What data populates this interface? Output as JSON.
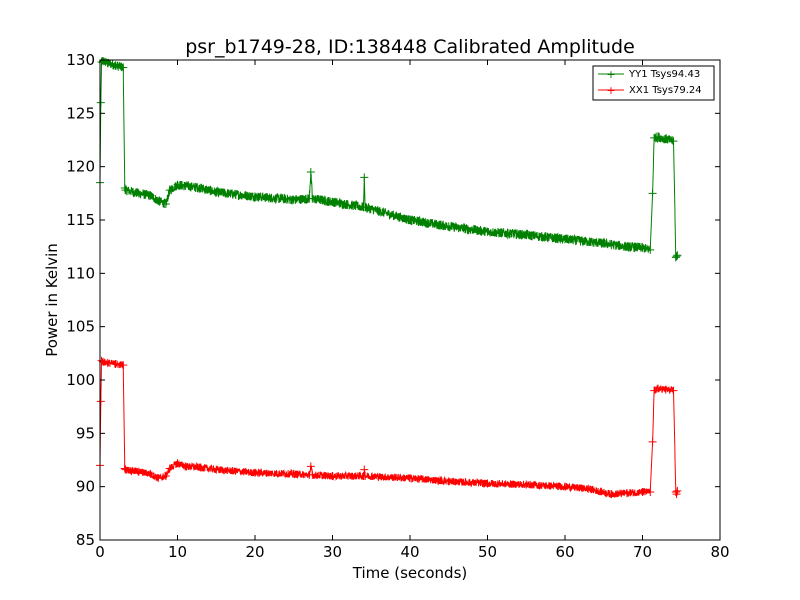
{
  "chart_data": {
    "type": "line",
    "title": "psr_b1749-28, ID:138448 Calibrated Amplitude",
    "xlabel": "Time (seconds)",
    "ylabel": "Power in Kelvin",
    "xlim": [
      0,
      80
    ],
    "ylim": [
      85,
      130
    ],
    "xticks": [
      "0",
      "10",
      "20",
      "30",
      "40",
      "50",
      "60",
      "70",
      "80"
    ],
    "yticks": [
      "85",
      "90",
      "95",
      "100",
      "105",
      "110",
      "115",
      "120",
      "125",
      "130"
    ],
    "grid": false,
    "legend_position": "top-right",
    "series": [
      {
        "name": "YY1 Tsys94.43",
        "color": "#008000",
        "marker": "+",
        "noise": 0.45,
        "x": [
          0.0,
          0.1,
          0.2,
          0.4,
          1.0,
          2.0,
          3.0,
          3.2,
          3.3,
          5.0,
          6.5,
          7.5,
          8.5,
          9.0,
          10.0,
          11.0,
          13.0,
          15.0,
          20.0,
          25.0,
          27.0,
          27.2,
          27.4,
          30.0,
          34.0,
          34.1,
          34.2,
          40.0,
          45.0,
          50.0,
          55.0,
          60.0,
          65.0,
          68.0,
          70.0,
          71.0,
          71.3,
          71.5,
          72.0,
          73.0,
          74.0,
          74.3,
          74.4,
          74.5
        ],
        "y": [
          118.5,
          126.0,
          129.8,
          129.9,
          129.7,
          129.5,
          129.3,
          118.0,
          117.8,
          117.5,
          117.3,
          116.8,
          116.5,
          117.8,
          118.3,
          118.2,
          118.0,
          117.6,
          117.2,
          116.9,
          117.0,
          119.5,
          117.0,
          116.7,
          116.2,
          119.0,
          116.2,
          115.0,
          114.4,
          113.9,
          113.6,
          113.2,
          112.8,
          112.5,
          112.4,
          112.2,
          117.5,
          122.7,
          122.8,
          122.6,
          122.4,
          111.5,
          111.6,
          111.7
        ]
      },
      {
        "name": "XX1 Tsys79.24",
        "color": "#ff0000",
        "marker": "+",
        "noise": 0.35,
        "x": [
          0.0,
          0.1,
          0.2,
          0.4,
          1.0,
          2.0,
          3.0,
          3.2,
          3.3,
          5.0,
          6.5,
          7.5,
          8.5,
          9.0,
          10.0,
          11.0,
          13.0,
          15.0,
          20.0,
          25.0,
          27.0,
          27.2,
          27.4,
          30.0,
          34.0,
          34.1,
          34.2,
          40.0,
          45.0,
          50.0,
          55.0,
          60.0,
          63.0,
          66.0,
          68.0,
          70.0,
          71.0,
          71.3,
          71.5,
          72.0,
          73.0,
          74.0,
          74.3,
          74.4,
          74.5
        ],
        "y": [
          92.0,
          98.0,
          101.8,
          101.7,
          101.6,
          101.5,
          101.4,
          91.7,
          91.6,
          91.4,
          91.2,
          90.8,
          91.0,
          91.7,
          92.2,
          91.9,
          91.8,
          91.6,
          91.3,
          91.2,
          91.1,
          91.9,
          91.1,
          91.0,
          91.0,
          91.6,
          91.0,
          90.8,
          90.5,
          90.3,
          90.2,
          90.0,
          89.8,
          89.3,
          89.4,
          89.5,
          89.5,
          94.2,
          99.0,
          99.2,
          99.1,
          99.0,
          89.5,
          89.3,
          89.6
        ]
      }
    ]
  }
}
